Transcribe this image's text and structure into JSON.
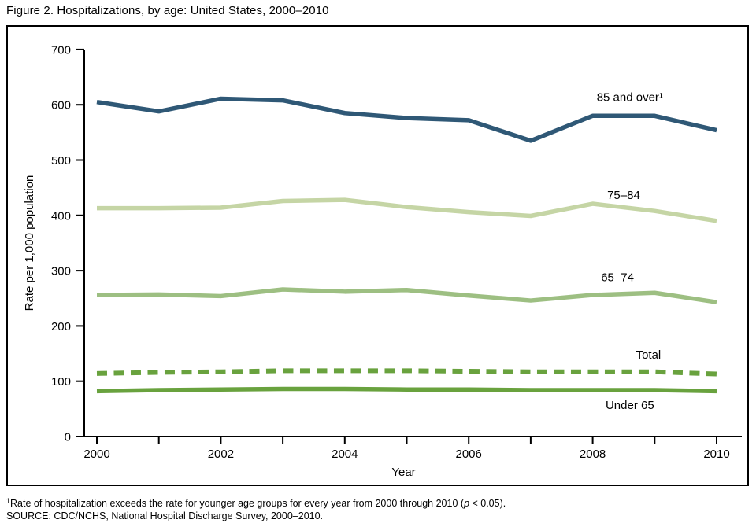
{
  "figure": {
    "title": "Figure 2. Hospitalizations, by age: United States, 2000–2010",
    "footnote": {
      "sup": "1",
      "pre": "Rate of hospitalization exceeds the rate for younger age groups for every year from 2000 through 2010 (",
      "italic": "p",
      "post": " < 0.05)."
    },
    "source": "SOURCE: CDC/NCHS, National Hospital Discharge Survey, 2000–2010."
  },
  "chart_data": {
    "type": "line",
    "title": "Figure 2. Hospitalizations, by age: United States, 2000–2010",
    "xlabel": "Year",
    "ylabel": "Rate per 1,000 population",
    "x": [
      2000,
      2001,
      2002,
      2003,
      2004,
      2005,
      2006,
      2007,
      2008,
      2009,
      2010
    ],
    "xlim": [
      2000,
      2010
    ],
    "ylim": [
      0,
      700
    ],
    "ytick_interval": 100,
    "yticks": [
      0,
      100,
      200,
      300,
      400,
      500,
      600,
      700
    ],
    "xticks_all": [
      2000,
      2001,
      2002,
      2003,
      2004,
      2005,
      2006,
      2007,
      2008,
      2009,
      2010
    ],
    "xticks_labeled": [
      2000,
      2002,
      2004,
      2006,
      2008,
      2010
    ],
    "grid": false,
    "legend_position": "inline-labels",
    "axis_color": "#000000",
    "series": [
      {
        "name": "85-and-over",
        "label": "85 and over¹",
        "color": "#2f5876",
        "style": "solid",
        "values": [
          605,
          588,
          611,
          608,
          585,
          576,
          572,
          535,
          580,
          580,
          554
        ],
        "label_at": {
          "x": 2008.6,
          "y": 614
        }
      },
      {
        "name": "75-84",
        "label": "75–84",
        "color": "#c5d5a5",
        "style": "solid",
        "values": [
          413,
          413,
          414,
          426,
          428,
          415,
          406,
          399,
          421,
          408,
          390
        ],
        "label_at": {
          "x": 2008.5,
          "y": 437
        }
      },
      {
        "name": "65-74",
        "label": "65–74",
        "color": "#9dbf82",
        "style": "solid",
        "values": [
          256,
          257,
          254,
          266,
          262,
          265,
          255,
          246,
          256,
          260,
          243
        ],
        "label_at": {
          "x": 2008.4,
          "y": 288
        }
      },
      {
        "name": "total",
        "label": "Total",
        "color": "#69a23e",
        "style": "dashed",
        "values": [
          114,
          116,
          117,
          119,
          119,
          119,
          118,
          117,
          117,
          117,
          113
        ],
        "label_at": {
          "x": 2008.9,
          "y": 148
        }
      },
      {
        "name": "under-65",
        "label": "Under 65",
        "color": "#69a23e",
        "style": "solid",
        "values": [
          82,
          84,
          85,
          86,
          86,
          85,
          85,
          84,
          84,
          84,
          82
        ],
        "label_at": {
          "x": 2008.6,
          "y": 57
        }
      }
    ]
  }
}
